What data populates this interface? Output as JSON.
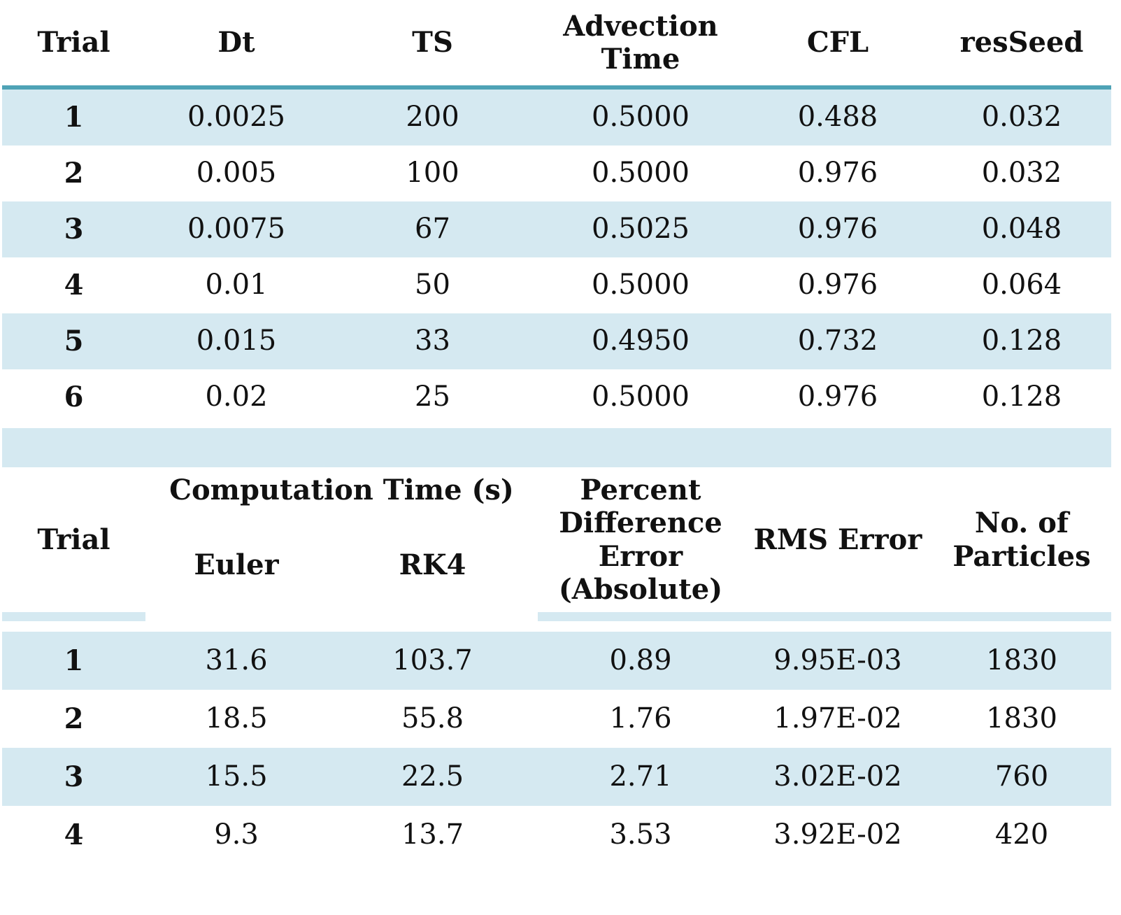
{
  "table1": {
    "headers": [
      "Trial",
      "Dt",
      "TS",
      "Advection\nTime",
      "CFL",
      "resSeed"
    ],
    "rows": [
      [
        "1",
        "0.0025",
        "200",
        "0.5000",
        "0.488",
        "0.032"
      ],
      [
        "2",
        "0.005",
        "100",
        "0.5000",
        "0.976",
        "0.032"
      ],
      [
        "3",
        "0.0075",
        "67",
        "0.5025",
        "0.976",
        "0.048"
      ],
      [
        "4",
        "0.01",
        "50",
        "0.5000",
        "0.976",
        "0.064"
      ],
      [
        "5",
        "0.015",
        "33",
        "0.4950",
        "0.732",
        "0.128"
      ],
      [
        "6",
        "0.02",
        "25",
        "0.5000",
        "0.976",
        "0.128"
      ]
    ]
  },
  "table2": {
    "headers": {
      "trial": "Trial",
      "computation_time": "Computation Time (s)",
      "euler": "Euler",
      "rk4": "RK4",
      "percent_difference": "Percent\nDifference\nError\n(Absolute)",
      "rms_error": "RMS Error",
      "particles": "No. of\nParticles"
    },
    "rows": [
      [
        "1",
        "31.6",
        "103.7",
        "0.89",
        "9.95E-03",
        "1830"
      ],
      [
        "2",
        "18.5",
        "55.8",
        "1.76",
        "1.97E-02",
        "1830"
      ],
      [
        "3",
        "15.5",
        "22.5",
        "2.71",
        "3.02E-02",
        "760"
      ],
      [
        "4",
        "9.3",
        "13.7",
        "3.53",
        "3.92E-02",
        "420"
      ]
    ]
  },
  "colors": {
    "row_highlight": "#d5e9f1",
    "header_rule": "#4fa3b6",
    "text": "#111111"
  }
}
